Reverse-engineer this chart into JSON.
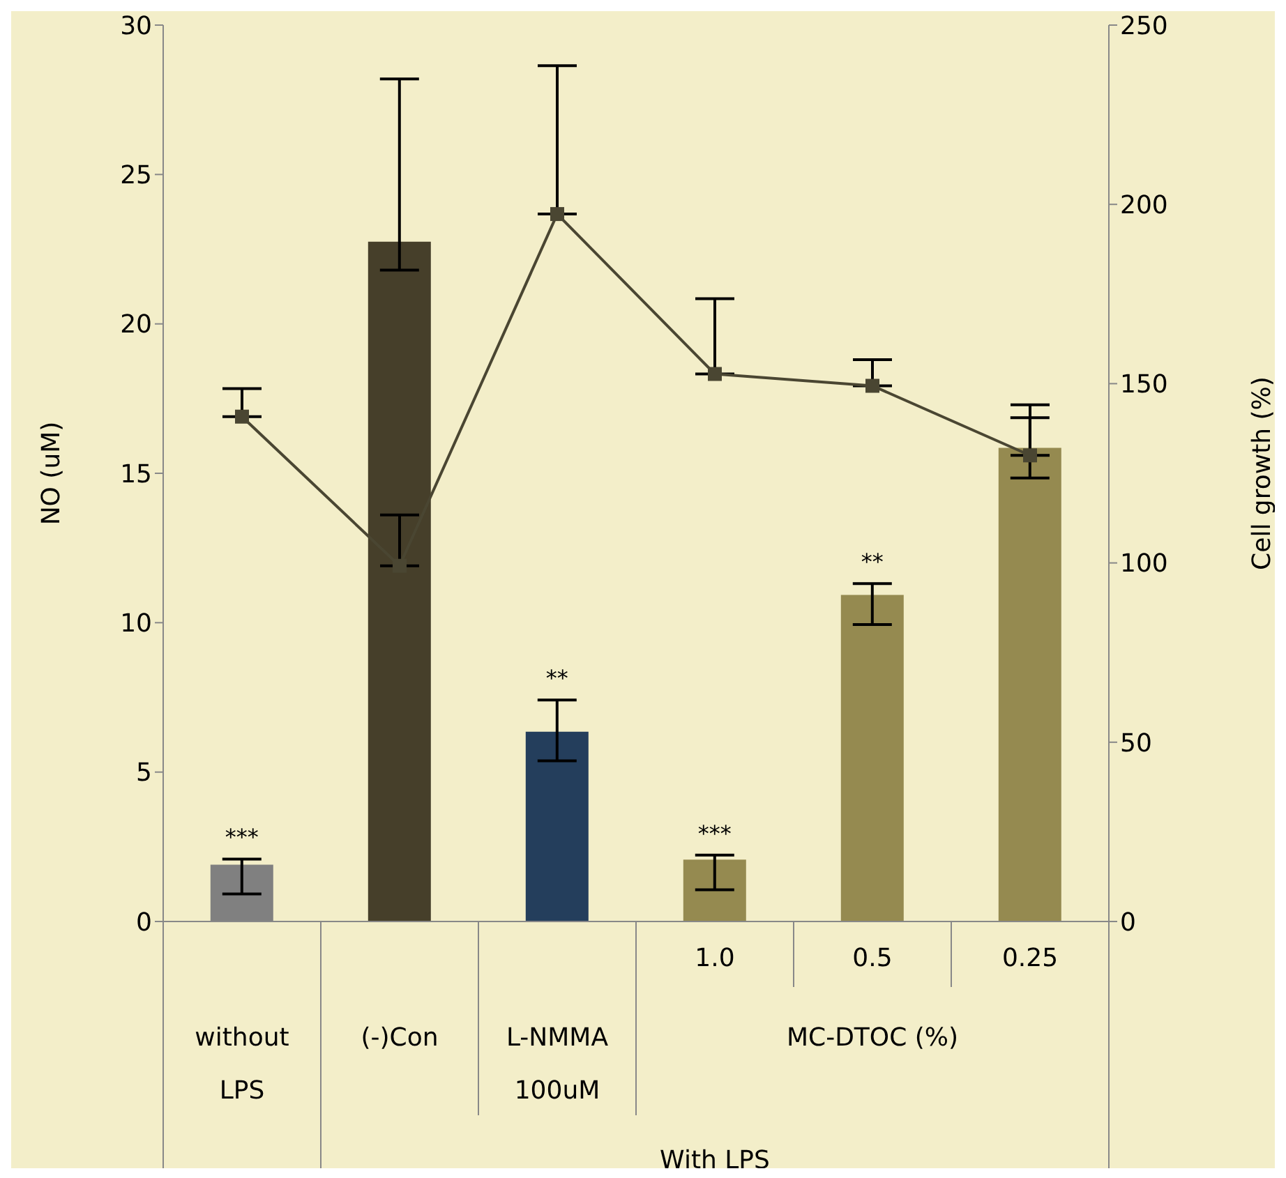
{
  "chart_data": {
    "type": "bar",
    "ylabel": "NO (uM)",
    "y2label": "Cell growth (%)",
    "categories": [
      "without LPS",
      "(-)Con",
      "L-NMMA 100uM",
      "1.0",
      "0.5",
      "0.25"
    ],
    "series": [
      {
        "colors": [
          "#808080",
          "#463f2a",
          "#243e5c",
          "#958a50",
          "#958a50",
          "#958a50"
        ],
        "values": [
          1.9,
          22.75,
          6.35,
          2.07,
          10.93,
          15.85
        ],
        "errors": [
          [
            0.92,
            2.09
          ],
          [
            21.8,
            28.2
          ],
          [
            5.38,
            7.41
          ],
          [
            1.06,
            2.22
          ],
          [
            9.94,
            11.31
          ],
          [
            14.84,
            16.86
          ]
        ]
      },
      {
        "type": "line",
        "axis": "y2",
        "color": "#4a4632",
        "marker": "square",
        "values": [
          140.8,
          99.2,
          197.3,
          152.7,
          149.4,
          130
        ],
        "errors": [
          [
            140.8,
            148.6
          ],
          [
            99.2,
            113.4
          ],
          [
            197.3,
            238.7
          ],
          [
            152.7,
            173.7
          ],
          [
            149.4,
            156.7
          ],
          [
            130,
            144.1
          ]
        ]
      }
    ],
    "ylim": [
      0,
      30
    ],
    "yticks": [
      0,
      5,
      10,
      15,
      20,
      25,
      30
    ],
    "y2lim": [
      0,
      250
    ],
    "y2ticks": [
      0,
      50,
      100,
      150,
      200,
      250
    ],
    "annotations": [
      {
        "text": "***",
        "x": "without LPS",
        "y": 2.09
      },
      {
        "text": "**",
        "x": "L-NMMA 100uM",
        "y": 7.41
      },
      {
        "text": "***",
        "x": "1.0",
        "y": 2.22
      },
      {
        "text": "**",
        "x": "0.5",
        "y": 11.31
      },
      "MC-DTOC (%)",
      "With LPS"
    ]
  }
}
